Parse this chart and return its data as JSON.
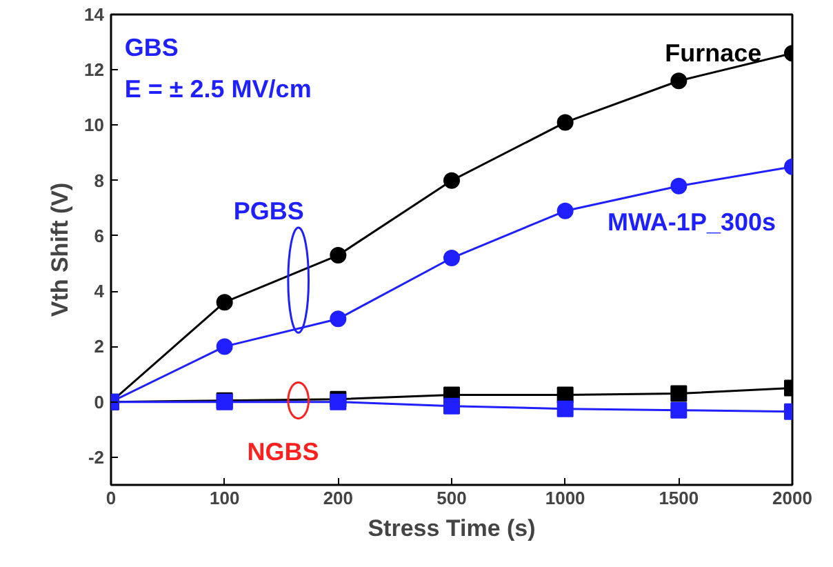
{
  "chart_data": {
    "type": "line",
    "xlabel": "Stress Time (s)",
    "ylabel": "Vth Shift (V)",
    "categories": [
      "0",
      "100",
      "200",
      "500",
      "1000",
      "1500",
      "2000"
    ],
    "ylim": [
      -3,
      14
    ],
    "yticks": [
      -2,
      0,
      2,
      4,
      6,
      8,
      10,
      12,
      14
    ],
    "grid": false,
    "series": [
      {
        "name": "Furnace",
        "color": "#000000",
        "marker": "circle",
        "values": [
          0,
          3.6,
          5.3,
          8.0,
          10.1,
          11.6,
          12.6
        ]
      },
      {
        "name": "MWA-1P_300s",
        "color": "#1f1fff",
        "marker": "circle",
        "values": [
          0,
          2.0,
          3.0,
          5.2,
          6.9,
          7.8,
          8.5
        ]
      },
      {
        "color": "#000000",
        "marker": "square",
        "values": [
          0,
          0.05,
          0.1,
          0.25,
          0.25,
          0.3,
          0.5
        ]
      },
      {
        "color": "#1f1fff",
        "marker": "square",
        "values": [
          0,
          0,
          0,
          -0.15,
          -0.25,
          -0.3,
          -0.35
        ]
      }
    ],
    "annotations": [
      "GBS",
      "E = ± 2.5 MV/cm",
      "PGBS",
      "NGBS"
    ]
  }
}
